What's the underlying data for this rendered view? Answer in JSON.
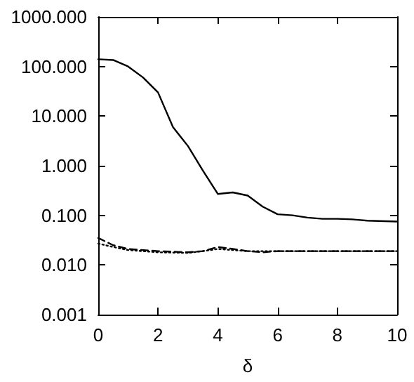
{
  "chart_data": {
    "type": "line",
    "xlabel": "δ",
    "log": "y",
    "grid": false,
    "marker": "none",
    "xlim": [
      0,
      10
    ],
    "xticks": [
      0,
      2,
      4,
      6,
      8,
      10
    ],
    "ylim": [
      0.001,
      1000
    ],
    "yticks": [
      {
        "value": 0.001,
        "label": "0.001"
      },
      {
        "value": 0.01,
        "label": "0.010"
      },
      {
        "value": 0.1,
        "label": "0.100"
      },
      {
        "value": 1,
        "label": "1.000"
      },
      {
        "value": 10,
        "label": "10.000"
      },
      {
        "value": 100,
        "label": "100.000"
      },
      {
        "value": 1000,
        "label": "1000.000"
      }
    ],
    "series": [
      {
        "color": "#000000",
        "line_style": "solid",
        "x": [
          0,
          0.5,
          1,
          1.5,
          2,
          2.5,
          3,
          3.5,
          4,
          4.5,
          5,
          5.5,
          6,
          6.5,
          7,
          7.5,
          8,
          8.5,
          9,
          10
        ],
        "values": [
          140,
          135,
          100,
          60,
          30,
          6,
          2.5,
          0.8,
          0.27,
          0.29,
          0.25,
          0.15,
          0.105,
          0.1,
          0.09,
          0.085,
          0.085,
          0.083,
          0.078,
          0.075
        ]
      },
      {
        "color": "#000000",
        "line_style": "dashed",
        "x": [
          0,
          0.5,
          1,
          2,
          3,
          3.5,
          4,
          4.5,
          5,
          5.5,
          6,
          7,
          8,
          10
        ],
        "values": [
          0.035,
          0.025,
          0.021,
          0.019,
          0.018,
          0.019,
          0.023,
          0.021,
          0.019,
          0.018,
          0.019,
          0.019,
          0.019,
          0.019
        ]
      },
      {
        "color": "#000000",
        "line_style": "dotted",
        "x": [
          0,
          0.5,
          1,
          2,
          3,
          3.5,
          4,
          5,
          6,
          10
        ],
        "values": [
          0.027,
          0.023,
          0.02,
          0.018,
          0.0175,
          0.019,
          0.021,
          0.019,
          0.019,
          0.019
        ]
      }
    ]
  }
}
